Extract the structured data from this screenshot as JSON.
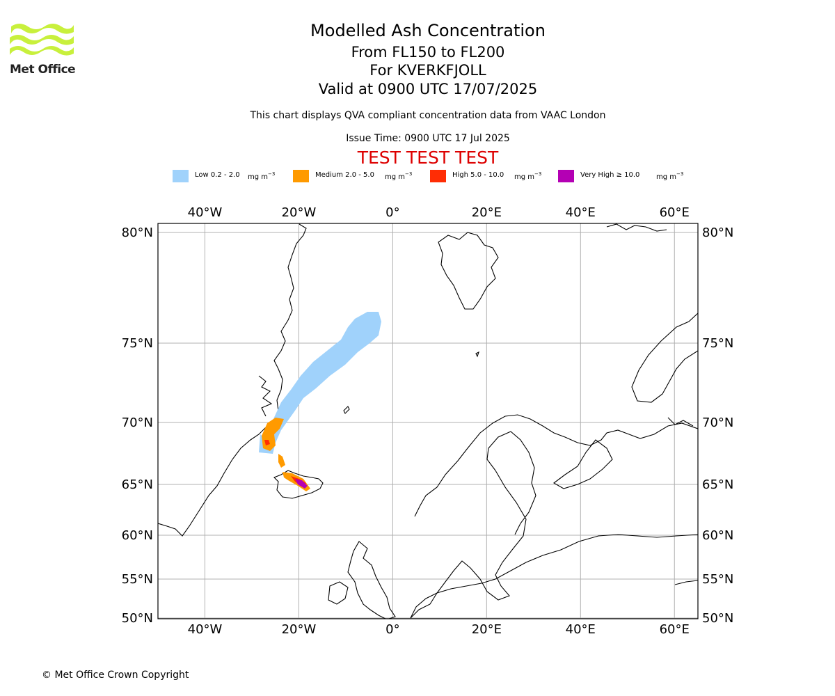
{
  "branding": {
    "logo_text": "Met Office",
    "logo_color": "#c8f03c"
  },
  "header": {
    "title": "Modelled Ash Concentration",
    "flight_levels": "From FL150 to FL200",
    "volcano": "For KVERKFJOLL",
    "valid_time": "Valid at 0900 UTC 17/07/2025",
    "subtitle": "This chart displays QVA compliant concentration data from VAAC London",
    "issue_time": "Issue Time: 0900 UTC 17 Jul 2025",
    "test_banner": "TEST TEST TEST"
  },
  "legend": {
    "unit": "mg m",
    "unit_exponent": "−3",
    "items": [
      {
        "label": "Low 0.2 - 2.0",
        "color": "#a0d2fb"
      },
      {
        "label": "Medium 2.0 - 5.0",
        "color": "#ff9a00"
      },
      {
        "label": "High 5.0 - 10.0",
        "color": "#ff2d05"
      },
      {
        "label": "Very High  ≥  10.0",
        "color": "#b400b4"
      }
    ]
  },
  "map": {
    "projection": "Plate Carree (equirectangular)",
    "lon_range": [
      -50,
      65
    ],
    "lat_range": [
      50,
      81
    ],
    "lon_ticks": [
      "40°W",
      "20°W",
      "0°",
      "20°E",
      "40°E",
      "60°E"
    ],
    "lat_ticks": [
      "80°N",
      "75°N",
      "70°N",
      "65°N",
      "60°N",
      "55°N",
      "50°N"
    ],
    "gridlines": true,
    "colors": {
      "coastline": "#000000",
      "grid": "#b0b0b0"
    }
  },
  "copyright": "© Met Office Crown Copyright"
}
